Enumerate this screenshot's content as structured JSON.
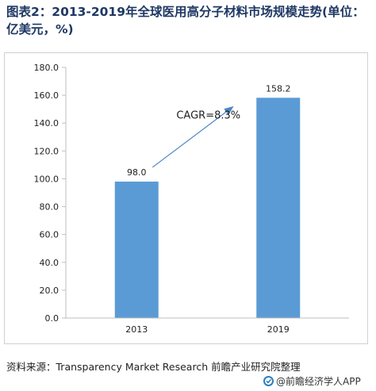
{
  "title": "图表2：2013-2019年全球医用高分子材料市场规模走势(单位：亿美元，%)",
  "chart_data": {
    "type": "bar",
    "categories": [
      "2013",
      "2019"
    ],
    "values": [
      98.0,
      158.2
    ],
    "value_labels": [
      "98.0",
      "158.2"
    ],
    "ylim": [
      0,
      180
    ],
    "ytick_labels": [
      "0.0",
      "20.0",
      "40.0",
      "60.0",
      "80.0",
      "100.0",
      "120.0",
      "140.0",
      "160.0",
      "180.0"
    ],
    "grid": false,
    "legend": "none",
    "annotation": "CAGR=8.3%",
    "bar_color": "#5b9bd5",
    "arrow_color": "#4a86c8"
  },
  "source": "资料来源：Transparency Market Research 前瞻产业研究院整理",
  "logo_text": "@前瞻经济学人APP"
}
